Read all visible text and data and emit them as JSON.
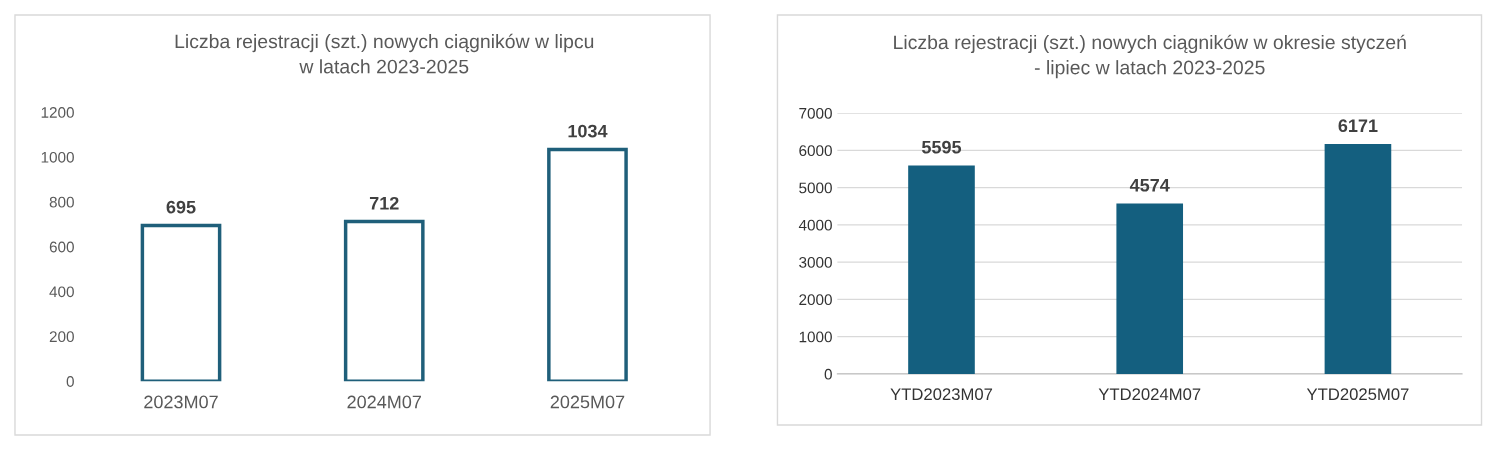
{
  "chart_data": [
    {
      "type": "bar",
      "title": "Liczba rejestracji (szt.) nowych ciągników w lipcu\nw latach 2023-2025",
      "categories": [
        "2023M07",
        "2024M07",
        "2025M07"
      ],
      "series": [
        {
          "color": "#1f5f7a",
          "values": [
            695,
            712,
            1034
          ]
        }
      ],
      "colors": [
        "#ffffff",
        "#ffffff",
        "#ffffff"
      ],
      "ylim": [
        0,
        1200
      ],
      "yticks": [
        0,
        200,
        400,
        600,
        800,
        1000,
        1200
      ],
      "grid": false,
      "data_labels": true
    },
    {
      "type": "bar",
      "title": "Liczba rejestracji (szt.) nowych ciągników w okresie styczeń\n- lipiec w latach 2023-2025",
      "categories": [
        "YTD2023M07",
        "YTD2024M07",
        "YTD2025M07"
      ],
      "series": [
        {
          "color": "#145f7f",
          "values": [
            5595,
            4574,
            6171
          ]
        }
      ],
      "ylim": [
        0,
        7000
      ],
      "yticks": [
        0,
        1000,
        2000,
        3000,
        4000,
        5000,
        6000,
        7000
      ],
      "grid": "y",
      "data_labels": true
    }
  ]
}
